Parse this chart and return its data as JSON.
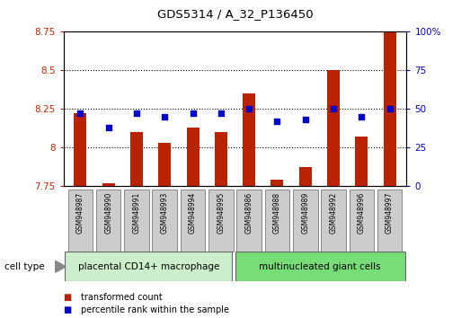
{
  "title": "GDS5314 / A_32_P136450",
  "samples": [
    "GSM948987",
    "GSM948990",
    "GSM948991",
    "GSM948993",
    "GSM948994",
    "GSM948995",
    "GSM948986",
    "GSM948988",
    "GSM948989",
    "GSM948992",
    "GSM948996",
    "GSM948997"
  ],
  "transformed_count": [
    8.22,
    7.77,
    8.1,
    8.03,
    8.13,
    8.1,
    8.35,
    7.79,
    7.87,
    8.5,
    8.07,
    8.88
  ],
  "percentile_rank": [
    47,
    38,
    47,
    45,
    47,
    47,
    50,
    42,
    43,
    50,
    45,
    50
  ],
  "bar_color": "#bb2200",
  "dot_color": "#0000cc",
  "group1_label": "placental CD14+ macrophage",
  "group2_label": "multinucleated giant cells",
  "group1_count": 6,
  "group2_count": 6,
  "ylim_left": [
    7.75,
    8.75
  ],
  "ylim_right": [
    0,
    100
  ],
  "yticks_left": [
    7.75,
    8.0,
    8.25,
    8.5,
    8.75
  ],
  "yticks_right": [
    0,
    25,
    50,
    75,
    100
  ],
  "ytick_labels_left": [
    "7.75",
    "8",
    "8.25",
    "8.5",
    "8.75"
  ],
  "ytick_labels_right": [
    "0",
    "25",
    "50",
    "75",
    "100%"
  ],
  "grid_lines": [
    8.0,
    8.25,
    8.5
  ],
  "legend_items": [
    "transformed count",
    "percentile rank within the sample"
  ],
  "bg_color": "#ffffff",
  "plot_bg": "#ffffff",
  "tick_label_color_left": "#cc2200",
  "tick_label_color_right": "#0000cc",
  "group1_bg": "#cceecc",
  "group2_bg": "#77dd77",
  "xticklabels_bg": "#cccccc",
  "cell_type_label": "cell type"
}
